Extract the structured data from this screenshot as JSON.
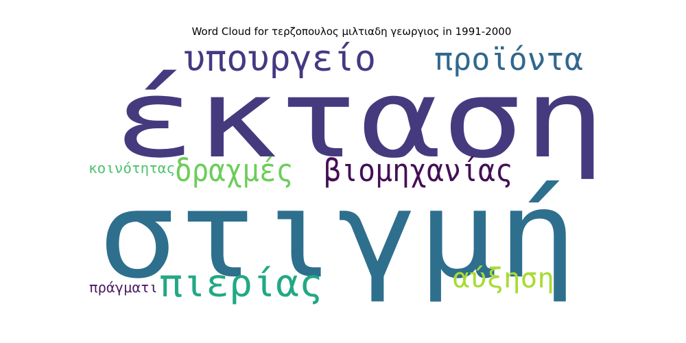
{
  "chart_data": {
    "type": "wordcloud",
    "title": "Word Cloud for τερζοπουλος μιλτιαδη γεωργιος in 1991-2000",
    "words": [
      {
        "text": "έκταση",
        "color": "#463a7f"
      },
      {
        "text": "στιγμή",
        "color": "#2e6f8e"
      },
      {
        "text": "υπουργείο",
        "color": "#443983"
      },
      {
        "text": "προϊόντα",
        "color": "#31688e"
      },
      {
        "text": "βιομηχανίας",
        "color": "#440f55"
      },
      {
        "text": "δραχμές",
        "color": "#6ccd5a"
      },
      {
        "text": "πιερίας",
        "color": "#22a884"
      },
      {
        "text": "αύξηση",
        "color": "#a8db34"
      },
      {
        "text": "κοινότητας",
        "color": "#4cc26c"
      },
      {
        "text": "πράγματι",
        "color": "#4b1c62"
      }
    ]
  }
}
